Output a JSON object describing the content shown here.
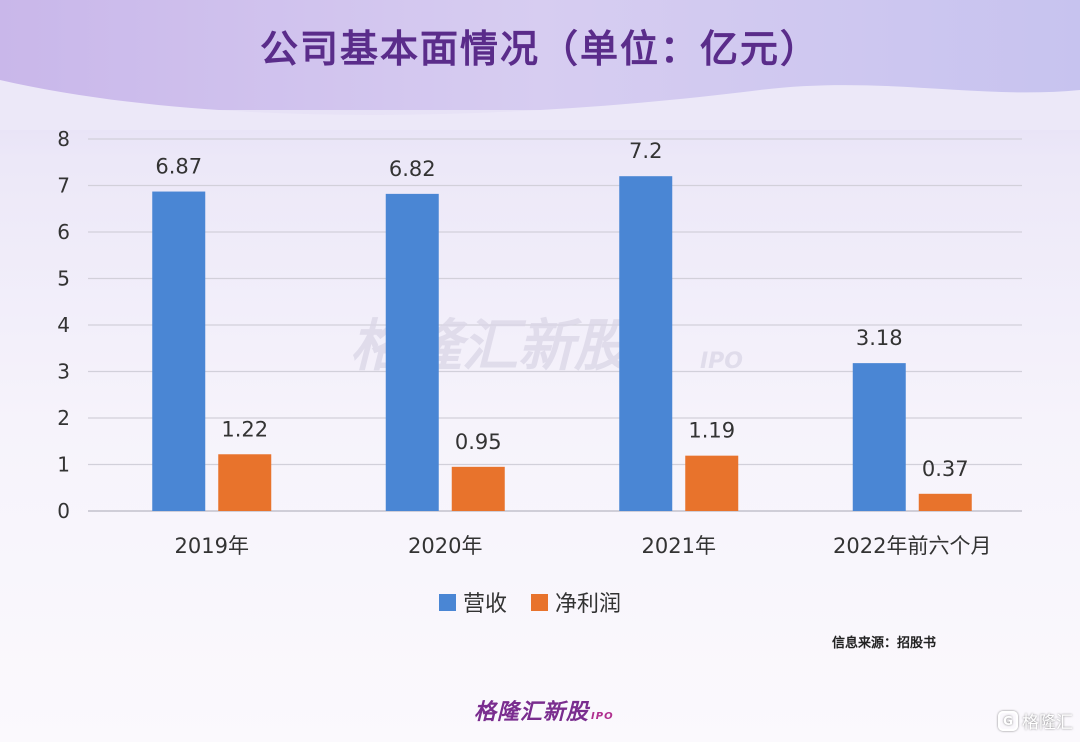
{
  "title": "公司基本面情况（单位：亿元）",
  "watermark": {
    "text": "格隆汇新股",
    "suffix": "IPO"
  },
  "source_note": "信息来源：招股书",
  "footer": {
    "brand": "格隆汇新股",
    "suffix": "IPO"
  },
  "corner_badge": {
    "icon": "G",
    "text": "格隆汇"
  },
  "colors": {
    "revenue": "#4a86d4",
    "profit": "#e8732c",
    "title": "#5a2c8a"
  },
  "chart_data": {
    "type": "bar",
    "title": "公司基本面情况（单位：亿元）",
    "categories": [
      "2019年",
      "2020年",
      "2021年",
      "2022年前六个月"
    ],
    "series": [
      {
        "name": "营收",
        "values": [
          6.87,
          6.82,
          7.2,
          3.18
        ],
        "labels": [
          "6.87",
          "6.82",
          "7.2",
          "3.18"
        ],
        "color": "#4a86d4"
      },
      {
        "name": "净利润",
        "values": [
          1.22,
          0.95,
          1.19,
          0.37
        ],
        "labels": [
          "1.22",
          "0.95",
          "1.19",
          "0.37"
        ],
        "color": "#e8732c"
      }
    ],
    "ylim": [
      0,
      8
    ],
    "yticks": [
      "0",
      "1",
      "2",
      "3",
      "4",
      "5",
      "6",
      "7",
      "8"
    ],
    "grid": true,
    "legend_position": "bottom"
  }
}
